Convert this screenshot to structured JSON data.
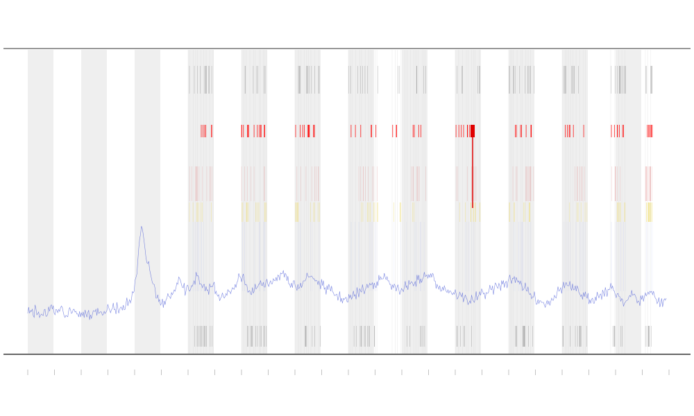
{
  "chart_data": {
    "type": "line",
    "title": "",
    "xlabel": "",
    "ylabel": "",
    "grid": false,
    "legend": "",
    "shaded_bands": [
      [
        40,
        77
      ],
      [
        117,
        154
      ],
      [
        194,
        231
      ],
      [
        271,
        308
      ],
      [
        348,
        385
      ],
      [
        425,
        462
      ],
      [
        502,
        539
      ],
      [
        579,
        616
      ],
      [
        656,
        693
      ],
      [
        733,
        770
      ],
      [
        810,
        847
      ],
      [
        887,
        924
      ]
    ],
    "series": [
      {
        "color": "#4f5fd8",
        "values": [
          452,
          448,
          455,
          445,
          450,
          453,
          447,
          456,
          449,
          446,
          454,
          451,
          444,
          450,
          455,
          448,
          452,
          446,
          453,
          449,
          455,
          447,
          451,
          454,
          448,
          446,
          452,
          450,
          449,
          448,
          447,
          445,
          446,
          444,
          443,
          440,
          438,
          436,
          432,
          420,
          395,
          345,
          330,
          360,
          380,
          395,
          410,
          430,
          435,
          438,
          434,
          430,
          428,
          425,
          420,
          410,
          405,
          415,
          420,
          418,
          412,
          405,
          398,
          410,
          415,
          420,
          418,
          414,
          410,
          420,
          425,
          428,
          430,
          426,
          420,
          415,
          410,
          405,
          400,
          395,
          410,
          420,
          425,
          420,
          415,
          410,
          412,
          414,
          410,
          405,
          402,
          400,
          398,
          395,
          400,
          405,
          410,
          415,
          412,
          410,
          408,
          405,
          402,
          400,
          398,
          402,
          405,
          410,
          412,
          415,
          418,
          420,
          422,
          425,
          428,
          430,
          432,
          435,
          430,
          428,
          425,
          422,
          420,
          418,
          415,
          412,
          410,
          408,
          406,
          404,
          402,
          400,
          405,
          410,
          415,
          420,
          418,
          416,
          414,
          412,
          410,
          408,
          406,
          404,
          402,
          400,
          398,
          396,
          400,
          405,
          410,
          412,
          414,
          416,
          418,
          420,
          422,
          424,
          426,
          428,
          430,
          432,
          434,
          432,
          430,
          428,
          426,
          424,
          422,
          420,
          418,
          416,
          414,
          412,
          410,
          408,
          406,
          404,
          402,
          400,
          405,
          410,
          415,
          420,
          425,
          428,
          430,
          432,
          434,
          436,
          438,
          434,
          430,
          426,
          422,
          418,
          414,
          410,
          412,
          415,
          418,
          420,
          422,
          425,
          428,
          430,
          432,
          430,
          428,
          426,
          424,
          422,
          420,
          418,
          416,
          420,
          424,
          428,
          432,
          436,
          432,
          428,
          425,
          430,
          435,
          432,
          428,
          424,
          420,
          425,
          430,
          435,
          438,
          434,
          430
        ],
        "x_range": [
          40,
          960
        ]
      }
    ],
    "event_rows": [
      {
        "name": "",
        "color": "#555555"
      },
      {
        "name": "",
        "color": "#ff0000"
      },
      {
        "name": "",
        "color": "#e08080"
      },
      {
        "name": "",
        "color": "#f0e080"
      },
      {
        "name": "",
        "color": "#c0c8f0"
      }
    ],
    "marker_zones": [
      [
        271,
        308
      ],
      [
        348,
        385
      ],
      [
        425,
        462
      ],
      [
        502,
        545
      ],
      [
        565,
        616
      ],
      [
        656,
        693
      ],
      [
        733,
        770
      ],
      [
        810,
        847
      ],
      [
        880,
        902
      ],
      [
        930,
        940
      ]
    ],
    "x_ticks": [
      "",
      "",
      "",
      "",
      "",
      "",
      "",
      "",
      "",
      "",
      "",
      "",
      "",
      "",
      "",
      "",
      "",
      "",
      "",
      "",
      "",
      "",
      "",
      "",
      ""
    ]
  }
}
